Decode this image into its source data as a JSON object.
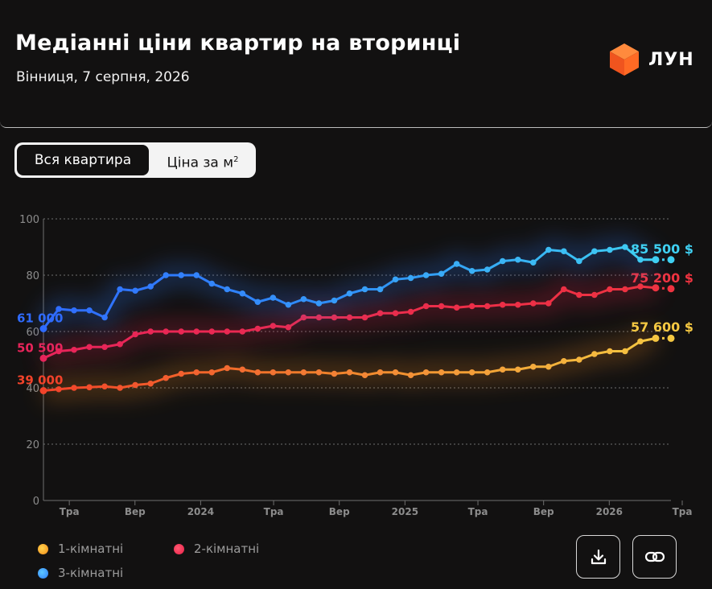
{
  "header": {
    "title": "Медіанні ціни квартир на вторинці",
    "subtitle": "Вінниця, 7 серпня, 2026",
    "logo_text": "ЛУН",
    "logo_icon": "orange-cube-icon"
  },
  "toggle": {
    "active_label": "Вся квартира",
    "inactive_label": "Ціна за м",
    "inactive_sup": "2"
  },
  "colors": {
    "background": "#121111",
    "one_room": "#f5c842",
    "one_room_start": "#f2432a",
    "two_room": "#ee2a50",
    "three_room_start": "#2f6bff",
    "three_room_end": "#3fd0f2",
    "grid": "#6f6f6f"
  },
  "chart_data": {
    "type": "line",
    "x_tick_labels": [
      "Тра",
      "Вер",
      "2024",
      "Тра",
      "Вер",
      "2025",
      "Тра",
      "Вер",
      "2026",
      "Тра"
    ],
    "y_ticks": [
      0,
      20,
      40,
      60,
      80,
      100
    ],
    "ylim": [
      0,
      100
    ],
    "grid": true,
    "series": [
      {
        "name": "1-кімнатні",
        "start_label": "39 000",
        "end_label": "57 600 $",
        "values": [
          39,
          39.5,
          40,
          40.2,
          40.5,
          40,
          41,
          41.5,
          43.5,
          45,
          45.5,
          45.5,
          47,
          46.5,
          45.5,
          45.5,
          45.5,
          45.5,
          45.5,
          45,
          45.5,
          44.5,
          45.5,
          45.5,
          44.5,
          45.5,
          45.5,
          45.5,
          45.5,
          45.5,
          46.5,
          46.5,
          47.5,
          47.5,
          49.5,
          50,
          52,
          53,
          53,
          56.5,
          57.6,
          57.6
        ]
      },
      {
        "name": "2-кімнатні",
        "start_label": "50 500",
        "end_label": "75 200 $",
        "values": [
          50.5,
          53,
          53.5,
          54.5,
          54.5,
          55.5,
          59,
          60,
          60,
          60,
          60,
          60,
          60,
          60,
          61,
          62,
          61.5,
          65,
          65,
          65,
          65,
          65,
          66.5,
          66.5,
          67,
          69,
          69,
          68.5,
          69,
          69,
          69.5,
          69.5,
          70,
          70,
          75,
          73,
          73,
          75,
          75,
          76,
          75.5,
          75.2
        ]
      },
      {
        "name": "3-кімнатні",
        "start_label": "61 000",
        "end_label": "85 500 $",
        "values": [
          61,
          68,
          67.5,
          67.5,
          65,
          75,
          74.5,
          76,
          80,
          80,
          80,
          77,
          75,
          73.5,
          70.5,
          72,
          69.5,
          71.5,
          70,
          71,
          73.5,
          75,
          75,
          78.5,
          79,
          80,
          80.5,
          84,
          81.5,
          82,
          85,
          85.5,
          84.5,
          89,
          88.5,
          85,
          88.5,
          89,
          90,
          85.5,
          85.5,
          85.5
        ]
      }
    ]
  },
  "legend": [
    {
      "label": "1-кімнатні"
    },
    {
      "label": "2-кімнатні"
    },
    {
      "label": "3-кімнатні"
    }
  ],
  "buttons": {
    "download_icon": "download-icon",
    "link_icon": "link-icon"
  }
}
